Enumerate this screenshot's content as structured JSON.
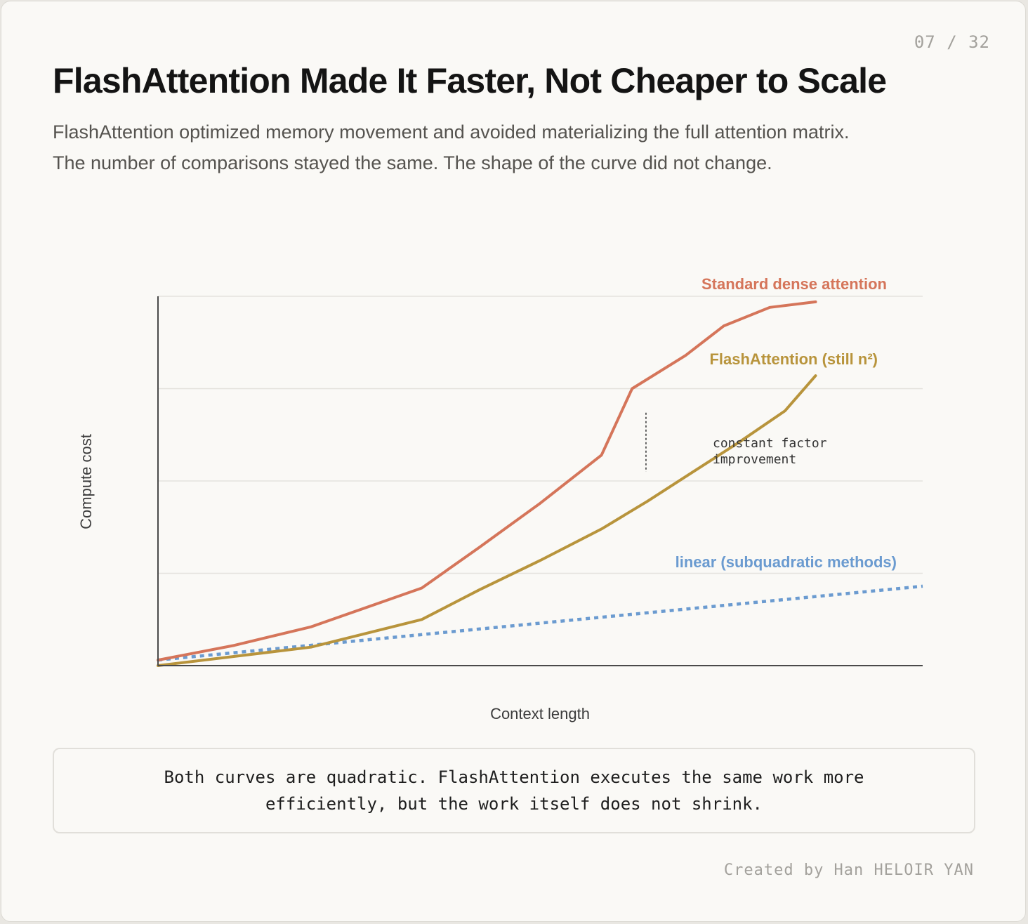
{
  "page_number": "07 / 32",
  "title": "FlashAttention Made It Faster, Not Cheaper to Scale",
  "subtitle_lines": [
    "FlashAttention optimized memory movement and avoided materializing the full attention matrix.",
    "The number of comparisons stayed the same. The shape of the curve did not change."
  ],
  "chart_data": {
    "type": "line",
    "xlabel": "Context length",
    "ylabel": "Compute cost",
    "xlim": [
      0,
      100
    ],
    "ylim": [
      0,
      100
    ],
    "grid": true,
    "series": [
      {
        "name": "Standard dense attention",
        "color": "#d5755a",
        "style": "solid",
        "x": [
          0,
          10,
          20,
          34.5,
          42,
          50,
          58,
          62,
          69,
          74,
          80,
          86
        ],
        "y": [
          1.5,
          5.5,
          10.5,
          21,
          32,
          44,
          57,
          75,
          84,
          92,
          97,
          98.5
        ]
      },
      {
        "name": "FlashAttention (still n²)",
        "color": "#b8943c",
        "style": "solid",
        "x": [
          0,
          10,
          20,
          34.5,
          42,
          50,
          58,
          64,
          70,
          76,
          82,
          86
        ],
        "y": [
          0,
          2.5,
          5,
          12.5,
          20.5,
          28.5,
          37,
          44.5,
          52.5,
          60.5,
          69,
          78.5
        ]
      },
      {
        "name": "linear (subquadratic methods)",
        "color": "#6b9bd0",
        "style": "dotted",
        "x": [
          0,
          100
        ],
        "y": [
          1.5,
          21.5
        ]
      }
    ],
    "annotations": [
      {
        "text_lines": [
          "constant factor",
          "improvement"
        ],
        "x": 64,
        "y_range": [
          52.5,
          68.5
        ]
      }
    ]
  },
  "footnote_lines": [
    "Both curves are quadratic. FlashAttention executes the same work more",
    "efficiently, but the work itself does not shrink."
  ],
  "credit": "Created by Han HELOIR YAN"
}
